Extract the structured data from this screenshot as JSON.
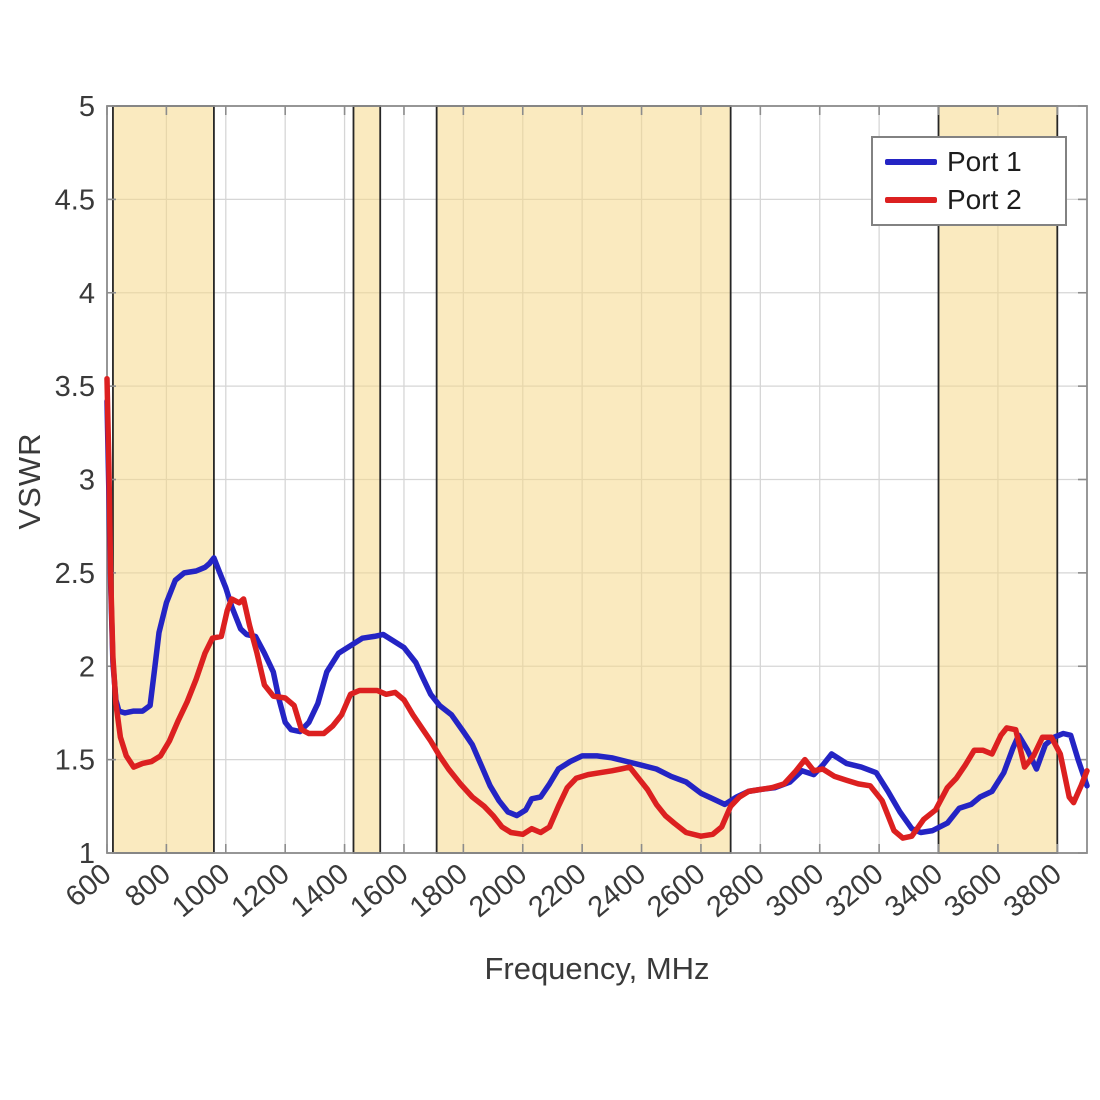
{
  "figure": {
    "background": "#ffffff"
  },
  "chart_data": {
    "type": "line",
    "title": "",
    "xlabel": "Frequency, MHz",
    "ylabel": "VSWR",
    "xlim": [
      600,
      3900
    ],
    "ylim": [
      1,
      5
    ],
    "grid": true,
    "x_ticks": [
      600,
      800,
      1000,
      1200,
      1400,
      1600,
      1800,
      2000,
      2200,
      2400,
      2600,
      2800,
      3000,
      3200,
      3400,
      3600,
      3800
    ],
    "x_tick_labels": [
      "600",
      "800",
      "1000",
      "1200",
      "1400",
      "1600",
      "1800",
      "2000",
      "2200",
      "2400",
      "2600",
      "2800",
      "3000",
      "3200",
      "3400",
      "3600",
      "3800"
    ],
    "y_ticks": [
      1,
      1.5,
      2,
      2.5,
      3,
      3.5,
      4,
      4.5,
      5
    ],
    "y_tick_labels": [
      "1",
      "1.5",
      "2",
      "2.5",
      "3",
      "3.5",
      "4",
      "4.5",
      "5"
    ],
    "colors": {
      "grid": "#d6d6d6",
      "axis": "#8c8c8c",
      "tick_label": "#3a3a3a",
      "band_fill": "rgba(245,216,138,0.55)",
      "band_border": "#262626",
      "port1": "#2424c4",
      "port2": "#dc2020"
    },
    "highlight_bands": [
      {
        "from": 620,
        "to": 960
      },
      {
        "from": 1430,
        "to": 1520
      },
      {
        "from": 1710,
        "to": 2700
      },
      {
        "from": 3400,
        "to": 3800
      }
    ],
    "legend": {
      "position": "top-right",
      "entries": [
        {
          "label": "Port 1",
          "color": "#2424c4"
        },
        {
          "label": "Port 2",
          "color": "#dc2020"
        }
      ]
    },
    "series": [
      {
        "name": "Port 1",
        "color": "#2424c4",
        "points": [
          [
            600,
            3.42
          ],
          [
            606,
            2.95
          ],
          [
            612,
            2.45
          ],
          [
            620,
            2.02
          ],
          [
            630,
            1.82
          ],
          [
            640,
            1.76
          ],
          [
            660,
            1.75
          ],
          [
            690,
            1.76
          ],
          [
            720,
            1.76
          ],
          [
            745,
            1.79
          ],
          [
            760,
            1.98
          ],
          [
            775,
            2.18
          ],
          [
            800,
            2.34
          ],
          [
            830,
            2.46
          ],
          [
            860,
            2.5
          ],
          [
            900,
            2.51
          ],
          [
            930,
            2.53
          ],
          [
            945,
            2.55
          ],
          [
            960,
            2.58
          ],
          [
            980,
            2.5
          ],
          [
            1000,
            2.42
          ],
          [
            1020,
            2.32
          ],
          [
            1050,
            2.2
          ],
          [
            1070,
            2.17
          ],
          [
            1100,
            2.16
          ],
          [
            1130,
            2.07
          ],
          [
            1160,
            1.97
          ],
          [
            1180,
            1.82
          ],
          [
            1200,
            1.7
          ],
          [
            1220,
            1.66
          ],
          [
            1250,
            1.65
          ],
          [
            1280,
            1.7
          ],
          [
            1310,
            1.8
          ],
          [
            1340,
            1.97
          ],
          [
            1380,
            2.07
          ],
          [
            1420,
            2.11
          ],
          [
            1460,
            2.15
          ],
          [
            1500,
            2.16
          ],
          [
            1530,
            2.17
          ],
          [
            1560,
            2.14
          ],
          [
            1600,
            2.1
          ],
          [
            1640,
            2.02
          ],
          [
            1660,
            1.95
          ],
          [
            1690,
            1.85
          ],
          [
            1720,
            1.79
          ],
          [
            1760,
            1.74
          ],
          [
            1800,
            1.65
          ],
          [
            1830,
            1.58
          ],
          [
            1860,
            1.47
          ],
          [
            1890,
            1.36
          ],
          [
            1920,
            1.28
          ],
          [
            1950,
            1.22
          ],
          [
            1980,
            1.2
          ],
          [
            2010,
            1.23
          ],
          [
            2030,
            1.29
          ],
          [
            2060,
            1.3
          ],
          [
            2090,
            1.37
          ],
          [
            2120,
            1.45
          ],
          [
            2160,
            1.49
          ],
          [
            2200,
            1.52
          ],
          [
            2250,
            1.52
          ],
          [
            2300,
            1.51
          ],
          [
            2350,
            1.49
          ],
          [
            2400,
            1.47
          ],
          [
            2450,
            1.45
          ],
          [
            2500,
            1.41
          ],
          [
            2550,
            1.38
          ],
          [
            2600,
            1.32
          ],
          [
            2640,
            1.29
          ],
          [
            2680,
            1.26
          ],
          [
            2720,
            1.3
          ],
          [
            2760,
            1.33
          ],
          [
            2800,
            1.34
          ],
          [
            2850,
            1.35
          ],
          [
            2900,
            1.38
          ],
          [
            2940,
            1.44
          ],
          [
            2980,
            1.42
          ],
          [
            3010,
            1.47
          ],
          [
            3040,
            1.53
          ],
          [
            3090,
            1.48
          ],
          [
            3140,
            1.46
          ],
          [
            3190,
            1.43
          ],
          [
            3230,
            1.33
          ],
          [
            3270,
            1.22
          ],
          [
            3310,
            1.13
          ],
          [
            3340,
            1.11
          ],
          [
            3380,
            1.12
          ],
          [
            3430,
            1.16
          ],
          [
            3470,
            1.24
          ],
          [
            3510,
            1.26
          ],
          [
            3540,
            1.3
          ],
          [
            3580,
            1.33
          ],
          [
            3620,
            1.43
          ],
          [
            3650,
            1.56
          ],
          [
            3670,
            1.63
          ],
          [
            3700,
            1.55
          ],
          [
            3730,
            1.45
          ],
          [
            3760,
            1.58
          ],
          [
            3790,
            1.62
          ],
          [
            3820,
            1.64
          ],
          [
            3845,
            1.63
          ],
          [
            3870,
            1.5
          ],
          [
            3900,
            1.36
          ]
        ]
      },
      {
        "name": "Port 2",
        "color": "#dc2020",
        "points": [
          [
            600,
            3.54
          ],
          [
            606,
            3.1
          ],
          [
            612,
            2.5
          ],
          [
            620,
            2.05
          ],
          [
            630,
            1.8
          ],
          [
            645,
            1.62
          ],
          [
            665,
            1.52
          ],
          [
            690,
            1.46
          ],
          [
            720,
            1.48
          ],
          [
            750,
            1.49
          ],
          [
            780,
            1.52
          ],
          [
            810,
            1.6
          ],
          [
            840,
            1.71
          ],
          [
            870,
            1.81
          ],
          [
            900,
            1.93
          ],
          [
            930,
            2.07
          ],
          [
            955,
            2.15
          ],
          [
            985,
            2.16
          ],
          [
            1005,
            2.3
          ],
          [
            1020,
            2.36
          ],
          [
            1045,
            2.34
          ],
          [
            1060,
            2.36
          ],
          [
            1080,
            2.22
          ],
          [
            1105,
            2.07
          ],
          [
            1130,
            1.9
          ],
          [
            1160,
            1.84
          ],
          [
            1200,
            1.83
          ],
          [
            1230,
            1.79
          ],
          [
            1255,
            1.66
          ],
          [
            1280,
            1.64
          ],
          [
            1330,
            1.64
          ],
          [
            1360,
            1.68
          ],
          [
            1390,
            1.74
          ],
          [
            1420,
            1.85
          ],
          [
            1450,
            1.87
          ],
          [
            1480,
            1.87
          ],
          [
            1510,
            1.87
          ],
          [
            1540,
            1.85
          ],
          [
            1570,
            1.86
          ],
          [
            1600,
            1.82
          ],
          [
            1630,
            1.74
          ],
          [
            1660,
            1.67
          ],
          [
            1690,
            1.6
          ],
          [
            1720,
            1.52
          ],
          [
            1750,
            1.45
          ],
          [
            1790,
            1.37
          ],
          [
            1830,
            1.3
          ],
          [
            1870,
            1.25
          ],
          [
            1900,
            1.2
          ],
          [
            1930,
            1.14
          ],
          [
            1960,
            1.11
          ],
          [
            2000,
            1.1
          ],
          [
            2030,
            1.13
          ],
          [
            2060,
            1.11
          ],
          [
            2090,
            1.14
          ],
          [
            2120,
            1.25
          ],
          [
            2150,
            1.35
          ],
          [
            2180,
            1.4
          ],
          [
            2220,
            1.42
          ],
          [
            2260,
            1.43
          ],
          [
            2300,
            1.44
          ],
          [
            2330,
            1.45
          ],
          [
            2360,
            1.46
          ],
          [
            2390,
            1.4
          ],
          [
            2420,
            1.34
          ],
          [
            2450,
            1.26
          ],
          [
            2480,
            1.2
          ],
          [
            2510,
            1.16
          ],
          [
            2550,
            1.11
          ],
          [
            2600,
            1.09
          ],
          [
            2640,
            1.1
          ],
          [
            2670,
            1.14
          ],
          [
            2700,
            1.25
          ],
          [
            2730,
            1.3
          ],
          [
            2760,
            1.33
          ],
          [
            2800,
            1.34
          ],
          [
            2840,
            1.35
          ],
          [
            2880,
            1.37
          ],
          [
            2920,
            1.44
          ],
          [
            2950,
            1.5
          ],
          [
            2980,
            1.44
          ],
          [
            3010,
            1.45
          ],
          [
            3050,
            1.41
          ],
          [
            3090,
            1.39
          ],
          [
            3130,
            1.37
          ],
          [
            3170,
            1.36
          ],
          [
            3210,
            1.28
          ],
          [
            3250,
            1.12
          ],
          [
            3280,
            1.08
          ],
          [
            3310,
            1.09
          ],
          [
            3350,
            1.18
          ],
          [
            3390,
            1.23
          ],
          [
            3430,
            1.35
          ],
          [
            3460,
            1.4
          ],
          [
            3490,
            1.47
          ],
          [
            3520,
            1.55
          ],
          [
            3550,
            1.55
          ],
          [
            3580,
            1.53
          ],
          [
            3610,
            1.63
          ],
          [
            3630,
            1.67
          ],
          [
            3660,
            1.66
          ],
          [
            3690,
            1.46
          ],
          [
            3720,
            1.52
          ],
          [
            3750,
            1.62
          ],
          [
            3780,
            1.62
          ],
          [
            3810,
            1.53
          ],
          [
            3840,
            1.3
          ],
          [
            3855,
            1.27
          ],
          [
            3880,
            1.36
          ],
          [
            3900,
            1.44
          ]
        ]
      }
    ]
  }
}
